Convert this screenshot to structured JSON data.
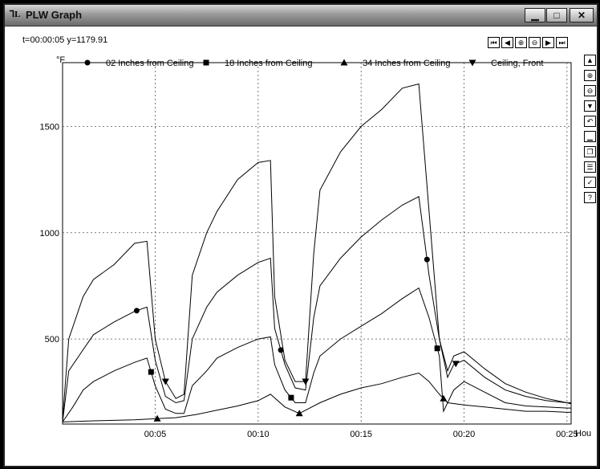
{
  "window": {
    "title": "PLW Graph",
    "app_icon": "plw-app-icon",
    "minimize_label": "▁",
    "maximize_label": "□",
    "close_label": "✕"
  },
  "readout": "t=00:00:05 y=1179.91",
  "nav_buttons": [
    {
      "name": "first-page-icon",
      "glyph": "⏮"
    },
    {
      "name": "prev-page-icon",
      "glyph": "◀"
    },
    {
      "name": "zoom-in-icon",
      "glyph": "⊕"
    },
    {
      "name": "zoom-out-icon",
      "glyph": "⊖"
    },
    {
      "name": "next-page-icon",
      "glyph": "▶"
    },
    {
      "name": "last-page-icon",
      "glyph": "⏭"
    }
  ],
  "side_buttons": [
    {
      "name": "scroll-up-icon",
      "glyph": "▲"
    },
    {
      "name": "zoom-in-vertical-icon",
      "glyph": "⊕"
    },
    {
      "name": "zoom-out-vertical-icon",
      "glyph": "⊖"
    },
    {
      "name": "scroll-down-icon",
      "glyph": "▼"
    },
    {
      "name": "undo-icon",
      "glyph": "↶"
    },
    {
      "name": "minimize-icon",
      "glyph": "▁"
    },
    {
      "name": "restore-icon",
      "glyph": "❐"
    },
    {
      "name": "list-icon",
      "glyph": "☰"
    },
    {
      "name": "check-icon",
      "glyph": "✓"
    },
    {
      "name": "help-icon",
      "glyph": "?"
    }
  ],
  "chart_data": {
    "type": "line",
    "title": "",
    "ylabel": "°F",
    "xlabel": "Hou",
    "ylim": [
      100,
      1800
    ],
    "xlim": [
      0.5,
      25.2
    ],
    "x_ticks": [
      5,
      10,
      15,
      20,
      25
    ],
    "x_tick_labels": [
      "00:05",
      "00:10",
      "00:15",
      "00:20",
      "00:25"
    ],
    "y_ticks": [
      500,
      1000,
      1500
    ],
    "y_tick_labels": [
      "500",
      "1000",
      "1500"
    ],
    "grid": true,
    "legend_position": "top",
    "series": [
      {
        "name": "Ceiling, Front",
        "marker": "triangle-down",
        "x": [
          0.5,
          0.8,
          1.5,
          2,
          3,
          4,
          4.6,
          5,
          5.5,
          6,
          6.4,
          6.8,
          7.5,
          8,
          9,
          10,
          10.6,
          10.8,
          11.3,
          11.8,
          12.3,
          12.7,
          13,
          14,
          15,
          16,
          17,
          17.8,
          18.3,
          18.8,
          19.2,
          19.5,
          20,
          21,
          22,
          23,
          24,
          25,
          25.2
        ],
        "y": [
          120,
          500,
          700,
          780,
          850,
          950,
          960,
          500,
          300,
          220,
          240,
          800,
          1000,
          1100,
          1250,
          1330,
          1340,
          700,
          400,
          300,
          300,
          900,
          1200,
          1380,
          1500,
          1580,
          1680,
          1700,
          1100,
          500,
          320,
          380,
          400,
          320,
          260,
          230,
          210,
          200,
          200
        ],
        "marker_x": [
          5.5,
          12.3,
          19.6
        ]
      },
      {
        "name": "02 Inches from Ceiling",
        "marker": "circle",
        "x": [
          0.5,
          0.8,
          1.5,
          2,
          3,
          4,
          4.6,
          5,
          5.5,
          6,
          6.4,
          6.8,
          7.5,
          8,
          9,
          10,
          10.6,
          10.8,
          11.3,
          11.8,
          12.3,
          12.7,
          13,
          14,
          15,
          16,
          17,
          17.8,
          18.3,
          18.8,
          19.2,
          19.5,
          20,
          21,
          22,
          23,
          24,
          25,
          25.2
        ],
        "y": [
          110,
          350,
          450,
          520,
          580,
          630,
          650,
          400,
          230,
          200,
          210,
          500,
          650,
          720,
          800,
          860,
          880,
          550,
          380,
          270,
          260,
          600,
          750,
          880,
          980,
          1060,
          1130,
          1170,
          800,
          500,
          350,
          420,
          440,
          360,
          290,
          250,
          220,
          200,
          195
        ],
        "marker_x": [
          4.1,
          11.1,
          18.2
        ]
      },
      {
        "name": "18 Inches from Ceiling",
        "marker": "square",
        "x": [
          0.5,
          1,
          1.5,
          2,
          3,
          4,
          4.6,
          5,
          5.5,
          6,
          6.4,
          6.8,
          7.5,
          8,
          9,
          10,
          10.6,
          10.8,
          11.3,
          11.8,
          12.3,
          12.7,
          13,
          14,
          15,
          16,
          17,
          17.8,
          18.3,
          18.8,
          19,
          19.5,
          20,
          21,
          22,
          23,
          24,
          25,
          25.2
        ],
        "y": [
          110,
          180,
          260,
          300,
          350,
          390,
          410,
          280,
          170,
          150,
          150,
          280,
          350,
          410,
          460,
          500,
          510,
          380,
          260,
          200,
          200,
          340,
          420,
          500,
          560,
          620,
          690,
          740,
          600,
          420,
          160,
          260,
          300,
          250,
          200,
          185,
          180,
          175,
          175
        ],
        "marker_x": [
          4.8,
          11.6,
          18.7
        ]
      },
      {
        "name": "34 Inches from Ceiling",
        "marker": "triangle-up",
        "x": [
          0.5,
          2,
          4,
          5,
          6,
          7,
          8,
          9,
          10,
          10.6,
          11.3,
          12,
          13,
          14,
          15,
          16,
          17,
          17.8,
          18.3,
          18.8,
          19.2,
          20,
          21,
          22,
          23,
          24,
          25,
          25.2
        ],
        "y": [
          110,
          115,
          120,
          125,
          130,
          145,
          165,
          185,
          210,
          240,
          180,
          150,
          200,
          240,
          270,
          290,
          320,
          340,
          300,
          240,
          200,
          190,
          180,
          170,
          160,
          160,
          155,
          155
        ],
        "marker_x": [
          5.1,
          12,
          19
        ]
      }
    ]
  }
}
